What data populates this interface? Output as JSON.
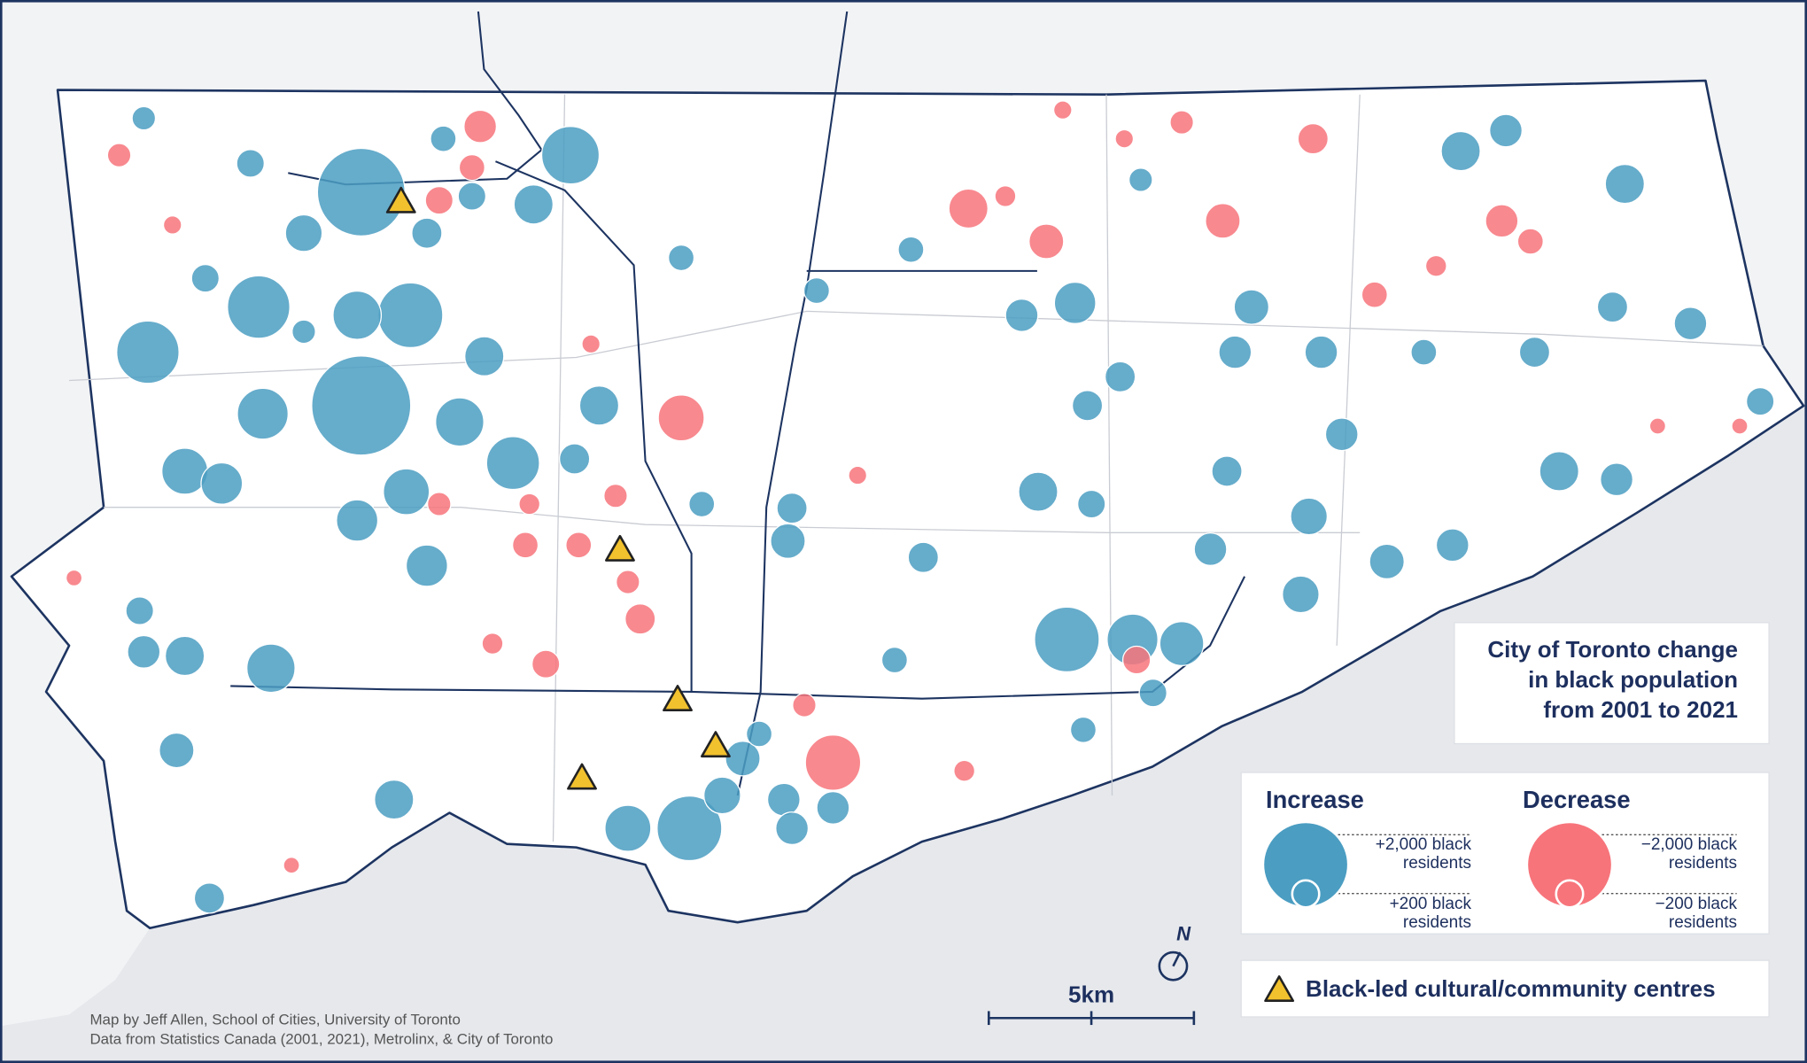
{
  "map": {
    "title": "City of Toronto change\nin black population\nfrom 2001 to 2021",
    "legend": {
      "increase": {
        "title": "Increase",
        "color": "#4b9dc2",
        "sizes": [
          {
            "value": 2000,
            "label": "+2,000 black\nresidents"
          },
          {
            "value": 200,
            "label": "+200 black\nresidents"
          }
        ]
      },
      "decrease": {
        "title": "Decrease",
        "color": "#f7747b",
        "sizes": [
          {
            "value": -2000,
            "label": "−2,000 black\nresidents"
          },
          {
            "value": -200,
            "label": "−200 black\nresidents"
          }
        ]
      },
      "centres": "Black-led cultural/community centres"
    },
    "scale_bar": "5km",
    "north": "N",
    "credits": [
      "Map by Jeff Allen, School of Cities, University of Toronto",
      "Data from Statistics Canada (2001, 2021), Metrolinx, & City of Toronto"
    ],
    "circles": [
      {
        "east": 7.4,
        "north": 20.6,
        "change": 2110
      },
      {
        "east": 8.6,
        "north": 17.6,
        "change": 1150
      },
      {
        "east": 2.2,
        "north": 16.7,
        "change": 1070
      },
      {
        "east": 4.9,
        "north": 17.8,
        "change": 1070
      },
      {
        "east": 7.4,
        "north": 15.4,
        "change": 2700
      },
      {
        "east": 12.5,
        "north": 21.5,
        "change": 910
      },
      {
        "east": 11.1,
        "north": 14.0,
        "change": 770
      },
      {
        "east": 13.2,
        "north": 15.4,
        "change": 420
      },
      {
        "east": 3.1,
        "north": 13.8,
        "change": 580
      },
      {
        "east": 8.5,
        "north": 13.3,
        "change": 580
      },
      {
        "east": 7.3,
        "north": 12.6,
        "change": 470
      },
      {
        "east": 7.3,
        "north": 17.6,
        "change": 640
      },
      {
        "east": 9.8,
        "north": 15.0,
        "change": 640
      },
      {
        "east": 11.6,
        "north": 20.3,
        "change": 420
      },
      {
        "east": 10.4,
        "north": 16.6,
        "change": 420
      },
      {
        "east": 5.0,
        "north": 15.2,
        "change": 710
      },
      {
        "east": 9.0,
        "north": 11.5,
        "change": 470
      },
      {
        "east": 2.1,
        "north": 9.4,
        "change": 290
      },
      {
        "east": 3.1,
        "north": 9.3,
        "change": 420
      },
      {
        "east": 5.2,
        "north": 9.0,
        "change": 640
      },
      {
        "east": 2.9,
        "north": 7.0,
        "change": 330
      },
      {
        "east": 8.2,
        "north": 5.8,
        "change": 420
      },
      {
        "east": 3.7,
        "north": 3.4,
        "change": 250
      },
      {
        "east": 2.0,
        "north": 10.4,
        "change": 210
      },
      {
        "east": 4.0,
        "north": 13.5,
        "change": 470
      },
      {
        "east": 12.6,
        "north": 14.1,
        "change": 250
      },
      {
        "east": 15.7,
        "north": 13.0,
        "change": 180
      },
      {
        "east": 17.9,
        "north": 12.9,
        "change": 250
      },
      {
        "east": 17.8,
        "north": 12.1,
        "change": 330
      },
      {
        "east": 21.1,
        "north": 11.7,
        "change": 250
      },
      {
        "east": 23.9,
        "north": 13.3,
        "change": 420
      },
      {
        "east": 25.2,
        "north": 13.0,
        "change": 210
      },
      {
        "east": 28.1,
        "north": 11.9,
        "change": 290
      },
      {
        "east": 30.3,
        "north": 10.8,
        "change": 370
      },
      {
        "east": 30.5,
        "north": 12.7,
        "change": 370
      },
      {
        "east": 32.4,
        "north": 11.6,
        "change": 330
      },
      {
        "east": 34.0,
        "north": 12.0,
        "change": 290
      },
      {
        "east": 31.3,
        "north": 14.7,
        "change": 290
      },
      {
        "east": 36.6,
        "north": 13.8,
        "change": 420
      },
      {
        "east": 38.0,
        "north": 13.6,
        "change": 290
      },
      {
        "east": 41.5,
        "north": 15.5,
        "change": 210
      },
      {
        "east": 39.8,
        "north": 17.4,
        "change": 290
      },
      {
        "east": 37.9,
        "north": 17.8,
        "change": 250
      },
      {
        "east": 38.2,
        "north": 20.8,
        "change": 420
      },
      {
        "east": 34.2,
        "north": 21.6,
        "change": 420
      },
      {
        "east": 35.3,
        "north": 22.1,
        "change": 290
      },
      {
        "east": 29.1,
        "north": 17.8,
        "change": 330
      },
      {
        "east": 30.8,
        "north": 16.7,
        "change": 290
      },
      {
        "east": 36.0,
        "north": 16.7,
        "change": 250
      },
      {
        "east": 28.7,
        "north": 16.7,
        "change": 290
      },
      {
        "east": 24.8,
        "north": 17.9,
        "change": 470
      },
      {
        "east": 23.5,
        "north": 17.6,
        "change": 290
      },
      {
        "east": 25.1,
        "north": 15.4,
        "change": 250
      },
      {
        "east": 25.9,
        "north": 16.1,
        "change": 250
      },
      {
        "east": 28.5,
        "north": 13.8,
        "change": 250
      },
      {
        "east": 24.6,
        "north": 9.7,
        "change": 1150
      },
      {
        "east": 26.2,
        "north": 9.7,
        "change": 710
      },
      {
        "east": 27.4,
        "north": 9.6,
        "change": 530
      },
      {
        "east": 25.0,
        "north": 7.5,
        "change": 180
      },
      {
        "east": 26.7,
        "north": 8.4,
        "change": 210
      },
      {
        "east": 20.4,
        "north": 9.2,
        "change": 180
      },
      {
        "east": 13.9,
        "north": 5.1,
        "change": 580
      },
      {
        "east": 15.4,
        "north": 5.1,
        "change": 1150
      },
      {
        "east": 16.2,
        "north": 5.9,
        "change": 370
      },
      {
        "east": 17.7,
        "north": 5.8,
        "change": 290
      },
      {
        "east": 17.9,
        "north": 5.1,
        "change": 290
      },
      {
        "east": 18.9,
        "north": 5.6,
        "change": 290
      },
      {
        "east": 18.5,
        "north": 18.2,
        "change": 180
      },
      {
        "east": 20.8,
        "north": 19.2,
        "change": 180
      },
      {
        "east": 15.2,
        "north": 19.0,
        "change": 180
      },
      {
        "east": 26.4,
        "north": 20.9,
        "change": 150
      },
      {
        "east": 33.3,
        "north": 16.7,
        "change": 180
      },
      {
        "east": 6.0,
        "north": 19.6,
        "change": 370
      },
      {
        "east": 9.0,
        "north": 19.6,
        "change": 250
      },
      {
        "east": 4.7,
        "north": 21.3,
        "change": 210
      },
      {
        "east": 2.1,
        "north": 22.4,
        "change": 150
      },
      {
        "east": 3.6,
        "north": 18.5,
        "change": 210
      },
      {
        "east": 6.0,
        "north": 17.2,
        "change": 150
      },
      {
        "east": 16.7,
        "north": 6.8,
        "change": 330
      },
      {
        "east": 17.1,
        "north": 7.4,
        "change": 180
      },
      {
        "east": 9.4,
        "north": 21.9,
        "change": 180
      },
      {
        "east": 10.1,
        "north": 20.5,
        "change": 210
      },
      {
        "east": 15.2,
        "north": 15.1,
        "change": -580
      },
      {
        "east": 22.2,
        "north": 20.2,
        "change": -420
      },
      {
        "east": 24.1,
        "north": 19.4,
        "change": -330
      },
      {
        "east": 28.4,
        "north": 19.9,
        "change": -330
      },
      {
        "east": 30.6,
        "north": 21.9,
        "change": -250
      },
      {
        "east": 35.2,
        "north": 19.9,
        "change": -290
      },
      {
        "east": 35.9,
        "north": 19.4,
        "change": -180
      },
      {
        "east": 32.1,
        "north": 18.1,
        "change": -180
      },
      {
        "east": 27.4,
        "north": 22.3,
        "change": -150
      },
      {
        "east": 10.3,
        "north": 22.2,
        "change": -290
      },
      {
        "east": 10.1,
        "north": 21.2,
        "change": -180
      },
      {
        "east": 9.3,
        "north": 20.4,
        "change": -210
      },
      {
        "east": 1.5,
        "north": 21.5,
        "change": -150
      },
      {
        "east": 18.9,
        "north": 6.7,
        "change": -840
      },
      {
        "east": 11.9,
        "north": 9.1,
        "change": -210
      },
      {
        "east": 13.9,
        "north": 11.1,
        "change": -150
      },
      {
        "east": 14.2,
        "north": 10.2,
        "change": -250
      },
      {
        "east": 12.7,
        "north": 12.0,
        "change": -180
      },
      {
        "east": 11.4,
        "north": 12.0,
        "change": -180
      },
      {
        "east": 13.6,
        "north": 13.2,
        "change": -150
      },
      {
        "east": 11.5,
        "north": 13.0,
        "change": -120
      },
      {
        "east": 9.3,
        "north": 13.0,
        "change": -150
      },
      {
        "east": 13.0,
        "north": 16.9,
        "change": -90
      },
      {
        "east": 19.5,
        "north": 13.7,
        "change": -90
      },
      {
        "east": 23.1,
        "north": 20.5,
        "change": -120
      },
      {
        "east": 33.6,
        "north": 18.8,
        "change": -120
      },
      {
        "east": 26.3,
        "north": 9.2,
        "change": -210
      },
      {
        "east": 18.2,
        "north": 8.1,
        "change": -150
      },
      {
        "east": 22.1,
        "north": 6.5,
        "change": -120
      },
      {
        "east": 5.7,
        "north": 4.2,
        "change": -70
      },
      {
        "east": 0.4,
        "north": 11.2,
        "change": -70
      },
      {
        "east": 2.8,
        "north": 19.8,
        "change": -90
      },
      {
        "east": 24.5,
        "north": 22.6,
        "change": -90
      },
      {
        "east": 26.0,
        "north": 21.9,
        "change": -90
      },
      {
        "east": 10.6,
        "north": 9.6,
        "change": -120
      },
      {
        "east": 41.0,
        "north": 14.9,
        "change": -70
      },
      {
        "east": 39.0,
        "north": 14.9,
        "change": -70
      }
    ]
  }
}
